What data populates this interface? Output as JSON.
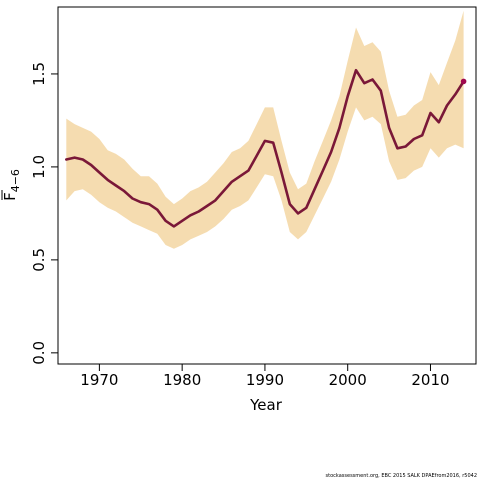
{
  "chart_data": {
    "type": "line",
    "xlabel": "Year",
    "ylabel_main": "F",
    "ylabel_sub": "4−6",
    "xlim": [
      1965,
      2015.5
    ],
    "ylim": [
      -0.06,
      1.86
    ],
    "x_ticks": [
      1970,
      1980,
      1990,
      2000,
      2010
    ],
    "x_tick_labels": [
      "1970",
      "1980",
      "1990",
      "2000",
      "2010"
    ],
    "y_ticks": [
      0.0,
      0.5,
      1.0,
      1.5
    ],
    "y_tick_labels": [
      "0.0",
      "0.5",
      "1.0",
      "1.5"
    ],
    "grid": false,
    "series": [
      {
        "x": [
          1966,
          1967,
          1968,
          1969,
          1970,
          1971,
          1972,
          1973,
          1974,
          1975,
          1976,
          1977,
          1978,
          1979,
          1980,
          1981,
          1982,
          1983,
          1984,
          1985,
          1986,
          1987,
          1988,
          1989,
          1990,
          1991,
          1992,
          1993,
          1994,
          1995,
          1996,
          1997,
          1998,
          1999,
          2000,
          2001,
          2002,
          2003,
          2004,
          2005,
          2006,
          2007,
          2008,
          2009,
          2010,
          2011,
          2012,
          2013,
          2014
        ],
        "y": [
          1.04,
          1.05,
          1.04,
          1.01,
          0.97,
          0.93,
          0.9,
          0.87,
          0.83,
          0.81,
          0.8,
          0.77,
          0.71,
          0.68,
          0.71,
          0.74,
          0.76,
          0.79,
          0.82,
          0.87,
          0.92,
          0.95,
          0.98,
          1.06,
          1.14,
          1.13,
          0.97,
          0.8,
          0.75,
          0.78,
          0.88,
          0.98,
          1.08,
          1.21,
          1.38,
          1.52,
          1.45,
          1.47,
          1.41,
          1.21,
          1.1,
          1.11,
          1.15,
          1.17,
          1.29,
          1.24,
          1.33,
          1.39,
          1.46
        ],
        "lower": [
          0.82,
          0.87,
          0.88,
          0.85,
          0.81,
          0.78,
          0.76,
          0.73,
          0.7,
          0.68,
          0.66,
          0.64,
          0.58,
          0.56,
          0.58,
          0.61,
          0.63,
          0.65,
          0.68,
          0.72,
          0.77,
          0.79,
          0.82,
          0.89,
          0.96,
          0.95,
          0.82,
          0.65,
          0.61,
          0.65,
          0.74,
          0.83,
          0.92,
          1.04,
          1.19,
          1.32,
          1.25,
          1.27,
          1.23,
          1.03,
          0.93,
          0.94,
          0.98,
          1.0,
          1.1,
          1.05,
          1.1,
          1.12,
          1.1
        ],
        "upper": [
          1.26,
          1.23,
          1.21,
          1.19,
          1.15,
          1.09,
          1.07,
          1.04,
          0.99,
          0.95,
          0.95,
          0.91,
          0.84,
          0.8,
          0.83,
          0.87,
          0.89,
          0.92,
          0.97,
          1.02,
          1.08,
          1.1,
          1.14,
          1.23,
          1.32,
          1.32,
          1.14,
          0.97,
          0.88,
          0.91,
          1.03,
          1.14,
          1.25,
          1.38,
          1.57,
          1.75,
          1.65,
          1.67,
          1.62,
          1.41,
          1.27,
          1.28,
          1.33,
          1.36,
          1.51,
          1.44,
          1.56,
          1.68,
          1.84
        ],
        "line_color": "#7a1838",
        "band_color": "#f5dcb0",
        "endpoint_color": "#a0084f"
      }
    ]
  },
  "footer": "stockassessment.org, EBC 2015 SALK DPAEfrom2016, r5042"
}
